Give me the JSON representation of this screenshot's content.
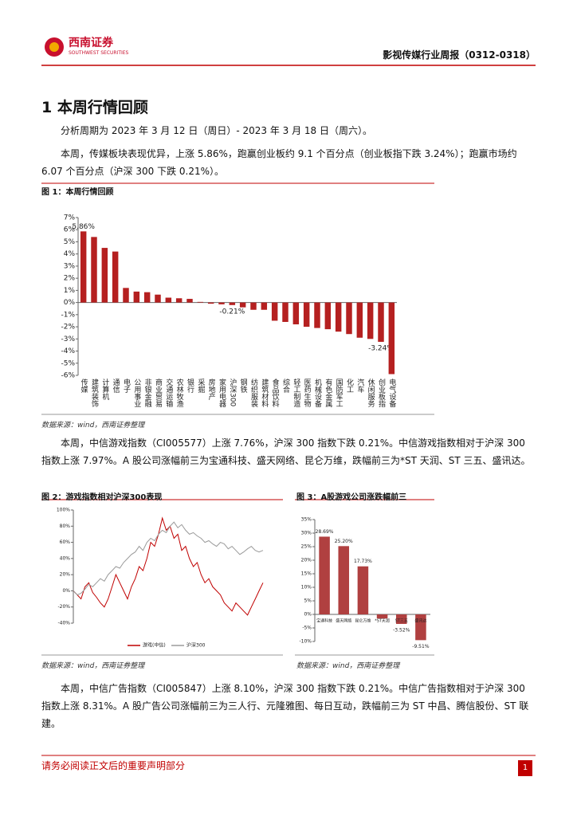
{
  "header": {
    "brand": "西南证券",
    "brand_en": "SOUTHWEST SECURITIES",
    "report_title": "影视传媒行业周报（0312-0318）"
  },
  "section_title": "1 本周行情回顾",
  "paragraphs": [
    "分析周期为 2023 年 3 月 12 日（周日）- 2023 年 3 月 18 日（周六）。",
    "本周，传媒板块表现优异，上涨 5.86%，跑赢创业板约 9.1 个百分点（创业板指下跌 3.24%）；跑赢市场约 6.07 个百分点（沪深 300 下跌 0.21%）。",
    "本周，中信游戏指数（CI005577）上涨 7.76%，沪深 300 指数下跌 0.21%。中信游戏指数相对于沪深 300 指数上涨 7.97%。A 股公司涨幅前三为宝通科技、盛天网络、昆仑万维，跌幅前三为*ST 天润、ST 三五、盛讯达。",
    "本周，中信广告指数（CI005847）上涨 8.10%，沪深 300 指数下跌 0.21%。中信广告指数相对于沪深 300 指数上涨 8.31%。A 股广告公司涨幅前三为三人行、元隆雅图、每日互动，跌幅前三为 ST 中昌、腾信股份、ST 联建。"
  ],
  "figures": [
    {
      "caption": "图 1：本周行情回顾",
      "source": "数据来源：wind，西南证券整理",
      "chart": {
        "type": "bar",
        "color": "#b52020",
        "categories": [
          "传媒",
          "建筑装饰",
          "计算机",
          "通信",
          "电子",
          "公用事业",
          "非银金融",
          "商业贸易",
          "交通运输",
          "农林牧渔",
          "银行",
          "采掘",
          "房地产",
          "家用电器",
          "沪深300",
          "钢铁",
          "纺织服装",
          "建筑材料",
          "食品饮料",
          "综合",
          "轻工制造",
          "医药生物",
          "机械设备",
          "有色金属",
          "国防军工",
          "化工",
          "汽车",
          "休闲服务",
          "创业板指",
          "电气设备"
        ],
        "values": [
          5.86,
          5.4,
          4.5,
          4.2,
          1.2,
          0.9,
          0.85,
          0.65,
          0.4,
          0.35,
          0.3,
          0.05,
          -0.1,
          -0.15,
          -0.21,
          -0.4,
          -0.6,
          -0.6,
          -1.5,
          -1.6,
          -1.8,
          -2.0,
          -2.1,
          -2.2,
          -2.4,
          -2.6,
          -2.9,
          -3.0,
          -3.24,
          -5.9
        ],
        "value_labels": [
          "5.86%",
          null,
          null,
          null,
          null,
          null,
          null,
          null,
          null,
          null,
          null,
          null,
          null,
          null,
          "-0.21%",
          null,
          null,
          null,
          null,
          null,
          null,
          null,
          null,
          null,
          null,
          null,
          null,
          null,
          "-3.24%",
          null
        ],
        "ylim": [
          -6,
          7
        ],
        "yticks": [
          {
            "value": 7,
            "label": "7%"
          },
          {
            "value": 6,
            "label": "6%"
          },
          {
            "value": 5,
            "label": "5%"
          },
          {
            "value": 4,
            "label": "4%"
          },
          {
            "value": 3,
            "label": "3%"
          },
          {
            "value": 2,
            "label": "2%"
          },
          {
            "value": 1,
            "label": "1%"
          },
          {
            "value": 0,
            "label": "0%"
          },
          {
            "value": -1,
            "label": "-1%"
          },
          {
            "value": -2,
            "label": "-2%"
          },
          {
            "value": -3,
            "label": "-3%"
          },
          {
            "value": -4,
            "label": "-4%"
          },
          {
            "value": -5,
            "label": "-5%"
          },
          {
            "value": -6,
            "label": "-6%"
          }
        ]
      }
    },
    {
      "caption": "图 2：游戏指数相对沪深300表现",
      "source": "数据来源：wind，西南证券整理",
      "chart": {
        "type": "line",
        "legend": "bottom",
        "series": [
          {
            "name": "游戏(中信)",
            "color": "#c00000",
            "values": [
              0,
              -5,
              -10,
              5,
              10,
              -2,
              -8,
              -15,
              -20,
              -10,
              5,
              20,
              10,
              0,
              -10,
              5,
              15,
              30,
              25,
              40,
              60,
              55,
              70,
              90,
              75,
              80,
              65,
              70,
              50,
              55,
              40,
              30,
              35,
              20,
              10,
              15,
              5,
              0,
              -5,
              -15,
              -20,
              -25,
              -15,
              -20,
              -25,
              -30,
              -20,
              -10,
              0,
              10
            ]
          },
          {
            "name": "沪深300",
            "color": "#9a9a9a",
            "values": [
              0,
              -5,
              -3,
              2,
              8,
              5,
              10,
              15,
              12,
              20,
              25,
              30,
              28,
              35,
              40,
              45,
              48,
              55,
              50,
              60,
              65,
              62,
              70,
              75,
              72,
              80,
              85,
              78,
              82,
              75,
              70,
              72,
              68,
              65,
              60,
              62,
              58,
              55,
              60,
              58,
              52,
              55,
              50,
              45,
              48,
              52,
              55,
              50,
              48,
              50
            ]
          }
        ],
        "ylim": [
          -40,
          100
        ],
        "yticks": [
          {
            "value": 100,
            "label": "100%"
          },
          {
            "value": 80,
            "label": "80%"
          },
          {
            "value": 60,
            "label": "60%"
          },
          {
            "value": 40,
            "label": "40%"
          },
          {
            "value": 20,
            "label": "20%"
          },
          {
            "value": 0,
            "label": "0%"
          },
          {
            "value": -20,
            "label": "-20%"
          },
          {
            "value": -40,
            "label": "-40%"
          }
        ]
      }
    },
    {
      "caption": "图 3：A股游戏公司涨跌幅前三",
      "source": "数据来源：wind，西南证券整理",
      "chart": {
        "type": "bar",
        "color": "#b04040",
        "categories": [
          "宝通科技",
          "盛天网络",
          "昆仑万维",
          "*ST天润",
          "ST三五",
          "盛讯达"
        ],
        "values": [
          28.69,
          25.2,
          17.73,
          -1.5,
          -3.52,
          -9.51
        ],
        "value_labels": [
          "28.69%",
          "25.20%",
          "17.73%",
          null,
          "-3.52%",
          "-9.51%"
        ],
        "ylim": [
          -10,
          35
        ],
        "yticks": [
          {
            "value": 35,
            "label": "35%"
          },
          {
            "value": 30,
            "label": "30%"
          },
          {
            "value": 25,
            "label": "25%"
          },
          {
            "value": 20,
            "label": "20%"
          },
          {
            "value": 15,
            "label": "15%"
          },
          {
            "value": 10,
            "label": "10%"
          },
          {
            "value": 5,
            "label": "5%"
          },
          {
            "value": 0,
            "label": "0%"
          },
          {
            "value": -5,
            "label": "-5%"
          },
          {
            "value": -10,
            "label": "-10%"
          }
        ]
      }
    }
  ],
  "footer": {
    "notice": "请务必阅读正文后的重要声明部分",
    "page": "1"
  }
}
